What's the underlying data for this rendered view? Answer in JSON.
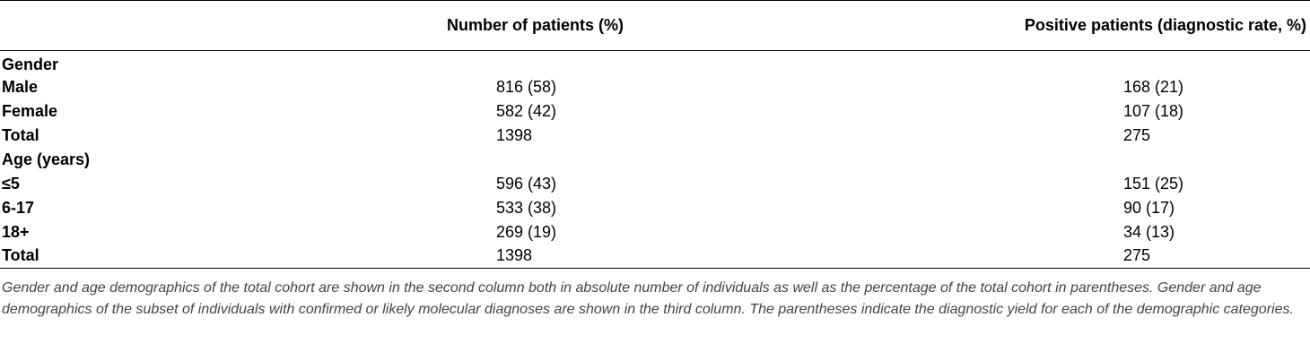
{
  "table": {
    "headers": [
      "",
      "Number of patients (%)",
      "Positive patients (diagnostic rate, %)"
    ],
    "rows": [
      {
        "label": "Gender",
        "n": "",
        "pos": ""
      },
      {
        "label": "Male",
        "n": "816 (58)",
        "pos": "168 (21)"
      },
      {
        "label": "Female",
        "n": "582 (42)",
        "pos": "107 (18)"
      },
      {
        "label": "Total",
        "n": "1398",
        "pos": "275"
      },
      {
        "label": "Age (years)",
        "n": "",
        "pos": ""
      },
      {
        "label": "≤5",
        "n": "596 (43)",
        "pos": "151 (25)"
      },
      {
        "label": "6-17",
        "n": "533 (38)",
        "pos": "90 (17)"
      },
      {
        "label": "18+",
        "n": "269 (19)",
        "pos": "34 (13)"
      },
      {
        "label": "Total",
        "n": "1398",
        "pos": "275"
      }
    ]
  },
  "caption": "Gender and age demographics of the total cohort are shown in the second column both in absolute number of individuals as well as the percentage of the total cohort in parentheses. Gender and age demographics of the subset of individuals with confirmed or likely molecular diagnoses are shown in the third column. The parentheses indicate the diagnostic yield for each of the demographic categories."
}
